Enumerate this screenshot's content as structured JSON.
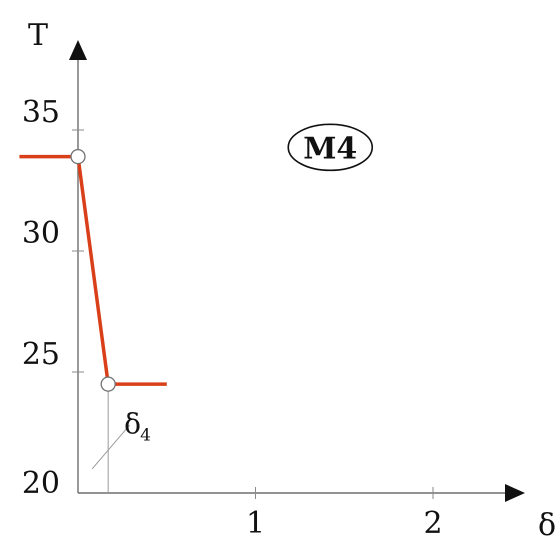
{
  "chart_data": {
    "type": "line",
    "title": "",
    "xlabel": "δ",
    "ylabel": "T",
    "xlim": [
      -0.5,
      2.6
    ],
    "ylim": [
      20,
      37
    ],
    "x_ticks": [
      1,
      2
    ],
    "x_tick_labels": [
      "1",
      "2"
    ],
    "y_ticks": [
      20,
      25,
      30,
      35
    ],
    "y_tick_labels": [
      "20",
      "25",
      "30",
      "35"
    ],
    "grid": false,
    "legend": "none",
    "series_color": "#d9401a",
    "series": [
      {
        "points": [
          {
            "x": -0.33,
            "y": 33.9
          },
          {
            "x": 0.0,
            "y": 33.9
          },
          {
            "x": 0.17,
            "y": 24.5
          },
          {
            "x": 0.5,
            "y": 24.5
          }
        ],
        "markers": [
          {
            "x": 0.0,
            "y": 33.9
          },
          {
            "x": 0.17,
            "y": 24.5
          }
        ]
      }
    ],
    "annotations": [
      {
        "text": "M4",
        "x": 1.5,
        "y": 34.2,
        "style": "ellipse-bold"
      },
      {
        "text": "δ",
        "subscript": "4",
        "x": 0.44,
        "y": 22.3,
        "leader_from": {
          "x": 0.08,
          "y": 21.0
        },
        "leader_to": {
          "x": 0.29,
          "y": 22.8
        }
      }
    ]
  }
}
